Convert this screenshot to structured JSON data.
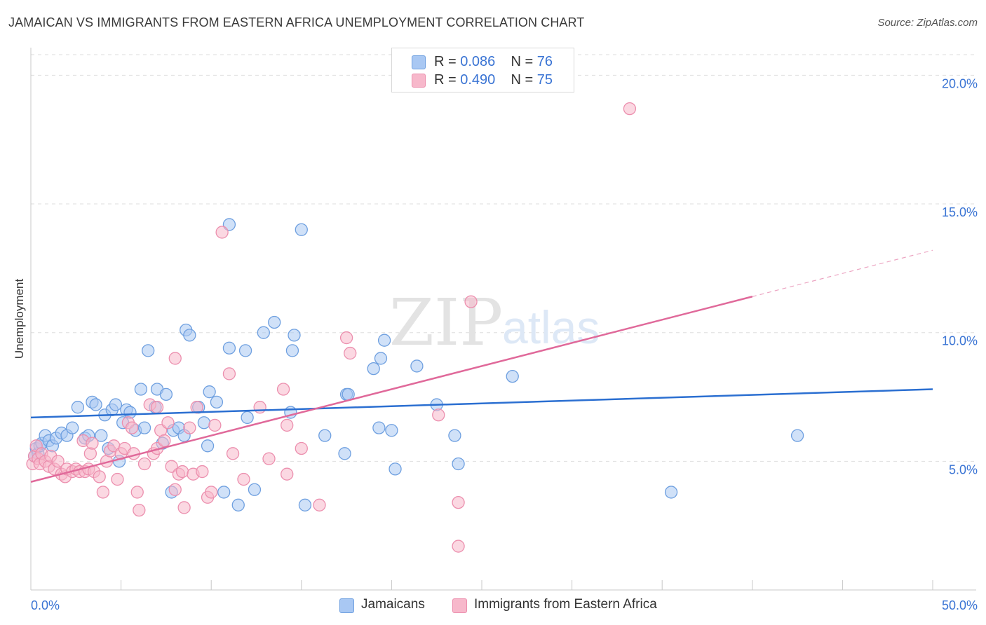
{
  "title": "JAMAICAN VS IMMIGRANTS FROM EASTERN AFRICA UNEMPLOYMENT CORRELATION CHART",
  "source": "Source: ZipAtlas.com",
  "watermark": {
    "zip": "ZIP",
    "atlas": "atlas"
  },
  "legend": {
    "r_label": "R =",
    "n_label": "N =",
    "rows": [
      {
        "r": "0.086",
        "n": "76",
        "color": "#a9c8f3"
      },
      {
        "r": "0.490",
        "n": "75",
        "color": "#f7b8cb"
      }
    ]
  },
  "chart_data": {
    "type": "scatter",
    "title": "JAMAICAN VS IMMIGRANTS FROM EASTERN AFRICA UNEMPLOYMENT CORRELATION CHART",
    "xlabel": "",
    "ylabel": "Unemployment",
    "xlim": [
      0,
      50
    ],
    "ylim": [
      0,
      20.8
    ],
    "x_tick_labels": [
      "0.0%",
      "50.0%"
    ],
    "y_ticks": [
      5,
      10,
      15,
      20
    ],
    "y_tick_labels": [
      "5.0%",
      "10.0%",
      "15.0%",
      "20.0%"
    ],
    "grid": true,
    "legend_position": "top-center",
    "series": [
      {
        "name": "Jamaicans",
        "color": "#6fa0e0",
        "fill": "#a9c8f3",
        "line_color": "#2b6fd1",
        "r": 0.086,
        "n": 76,
        "trend": {
          "x0": 0,
          "y0": 6.7,
          "x1": 50,
          "y1": 7.8
        },
        "points": [
          [
            0.2,
            5.2
          ],
          [
            0.3,
            5.5
          ],
          [
            0.4,
            5.3
          ],
          [
            0.5,
            5.6
          ],
          [
            0.6,
            5.7
          ],
          [
            0.8,
            6.0
          ],
          [
            1.0,
            5.8
          ],
          [
            1.2,
            5.6
          ],
          [
            1.4,
            5.9
          ],
          [
            1.7,
            6.1
          ],
          [
            2.0,
            6.0
          ],
          [
            2.3,
            6.3
          ],
          [
            2.6,
            7.1
          ],
          [
            3.0,
            5.9
          ],
          [
            3.2,
            6.0
          ],
          [
            3.4,
            7.3
          ],
          [
            3.6,
            7.2
          ],
          [
            3.9,
            6.0
          ],
          [
            4.1,
            6.8
          ],
          [
            4.3,
            5.5
          ],
          [
            4.5,
            7.0
          ],
          [
            4.7,
            7.2
          ],
          [
            4.9,
            5.0
          ],
          [
            5.1,
            6.5
          ],
          [
            5.3,
            7.0
          ],
          [
            5.5,
            6.9
          ],
          [
            5.8,
            6.2
          ],
          [
            6.1,
            7.8
          ],
          [
            6.3,
            6.3
          ],
          [
            6.5,
            9.3
          ],
          [
            6.9,
            7.1
          ],
          [
            7.0,
            7.8
          ],
          [
            7.3,
            5.7
          ],
          [
            7.5,
            7.6
          ],
          [
            7.8,
            3.8
          ],
          [
            7.9,
            6.2
          ],
          [
            8.2,
            6.3
          ],
          [
            8.5,
            6.0
          ],
          [
            8.6,
            10.1
          ],
          [
            8.8,
            9.9
          ],
          [
            9.3,
            7.1
          ],
          [
            9.6,
            6.5
          ],
          [
            9.8,
            5.6
          ],
          [
            9.9,
            7.7
          ],
          [
            10.3,
            7.3
          ],
          [
            10.7,
            3.8
          ],
          [
            11.0,
            9.4
          ],
          [
            11.5,
            3.3
          ],
          [
            11.9,
            9.3
          ],
          [
            12.0,
            6.7
          ],
          [
            12.4,
            3.9
          ],
          [
            14.5,
            9.3
          ],
          [
            14.6,
            9.9
          ],
          [
            15.0,
            14.0
          ],
          [
            15.2,
            3.3
          ],
          [
            14.4,
            6.9
          ],
          [
            16.3,
            6.0
          ],
          [
            17.4,
            5.3
          ],
          [
            17.5,
            7.6
          ],
          [
            17.6,
            7.6
          ],
          [
            19.0,
            8.6
          ],
          [
            19.3,
            6.3
          ],
          [
            19.4,
            9.0
          ],
          [
            19.6,
            9.7
          ],
          [
            20.0,
            6.2
          ],
          [
            20.2,
            4.7
          ],
          [
            21.4,
            8.7
          ],
          [
            22.5,
            7.2
          ],
          [
            23.5,
            6.0
          ],
          [
            23.7,
            4.9
          ],
          [
            26.7,
            8.3
          ],
          [
            35.5,
            3.8
          ],
          [
            42.5,
            6.0
          ],
          [
            11.0,
            14.2
          ],
          [
            12.9,
            10.0
          ],
          [
            13.5,
            10.4
          ]
        ]
      },
      {
        "name": "Immigrants from Eastern Africa",
        "color": "#ec8fae",
        "fill": "#f7b8cb",
        "line_color": "#e0699a",
        "r": 0.49,
        "n": 75,
        "trend": {
          "x0": 0,
          "y0": 4.2,
          "x1": 40,
          "y1": 11.4
        },
        "trend_dash": {
          "x0": 40,
          "y0": 11.4,
          "x1": 50,
          "y1": 13.2
        },
        "points": [
          [
            0.1,
            4.9
          ],
          [
            0.2,
            5.2
          ],
          [
            0.3,
            5.6
          ],
          [
            0.4,
            5.1
          ],
          [
            0.5,
            4.9
          ],
          [
            0.6,
            5.3
          ],
          [
            0.8,
            5.0
          ],
          [
            1.0,
            4.8
          ],
          [
            1.1,
            5.2
          ],
          [
            1.3,
            4.7
          ],
          [
            1.5,
            5.0
          ],
          [
            1.7,
            4.5
          ],
          [
            1.9,
            4.4
          ],
          [
            2.0,
            4.7
          ],
          [
            2.3,
            4.6
          ],
          [
            2.5,
            4.7
          ],
          [
            2.7,
            4.6
          ],
          [
            2.9,
            5.8
          ],
          [
            3.0,
            4.6
          ],
          [
            3.2,
            4.7
          ],
          [
            3.3,
            5.3
          ],
          [
            3.5,
            4.6
          ],
          [
            3.8,
            4.4
          ],
          [
            4.0,
            3.8
          ],
          [
            4.2,
            5.0
          ],
          [
            4.4,
            5.4
          ],
          [
            4.6,
            5.6
          ],
          [
            4.8,
            4.3
          ],
          [
            5.0,
            5.3
          ],
          [
            5.2,
            5.5
          ],
          [
            5.4,
            6.5
          ],
          [
            5.6,
            6.3
          ],
          [
            5.7,
            5.3
          ],
          [
            5.9,
            3.8
          ],
          [
            6.0,
            3.1
          ],
          [
            6.3,
            4.9
          ],
          [
            6.6,
            7.2
          ],
          [
            6.8,
            5.3
          ],
          [
            7.0,
            5.5
          ],
          [
            7.2,
            6.2
          ],
          [
            7.4,
            5.8
          ],
          [
            7.6,
            6.5
          ],
          [
            7.8,
            4.8
          ],
          [
            8.0,
            9.0
          ],
          [
            8.0,
            3.9
          ],
          [
            8.2,
            4.5
          ],
          [
            8.4,
            4.6
          ],
          [
            8.5,
            3.2
          ],
          [
            8.8,
            6.3
          ],
          [
            9.0,
            4.5
          ],
          [
            9.2,
            7.1
          ],
          [
            9.5,
            4.6
          ],
          [
            9.8,
            3.6
          ],
          [
            10.0,
            3.8
          ],
          [
            10.2,
            6.4
          ],
          [
            10.6,
            13.9
          ],
          [
            11.0,
            8.4
          ],
          [
            11.2,
            5.3
          ],
          [
            11.8,
            4.3
          ],
          [
            12.7,
            7.1
          ],
          [
            13.2,
            5.1
          ],
          [
            14.0,
            7.8
          ],
          [
            14.2,
            6.4
          ],
          [
            14.2,
            4.5
          ],
          [
            15.0,
            5.5
          ],
          [
            16.0,
            3.3
          ],
          [
            17.5,
            9.8
          ],
          [
            17.7,
            9.2
          ],
          [
            22.6,
            6.8
          ],
          [
            23.7,
            3.4
          ],
          [
            23.7,
            1.7
          ],
          [
            24.4,
            11.2
          ],
          [
            33.2,
            18.7
          ],
          [
            7.0,
            7.1
          ],
          [
            3.4,
            5.7
          ]
        ]
      }
    ]
  }
}
